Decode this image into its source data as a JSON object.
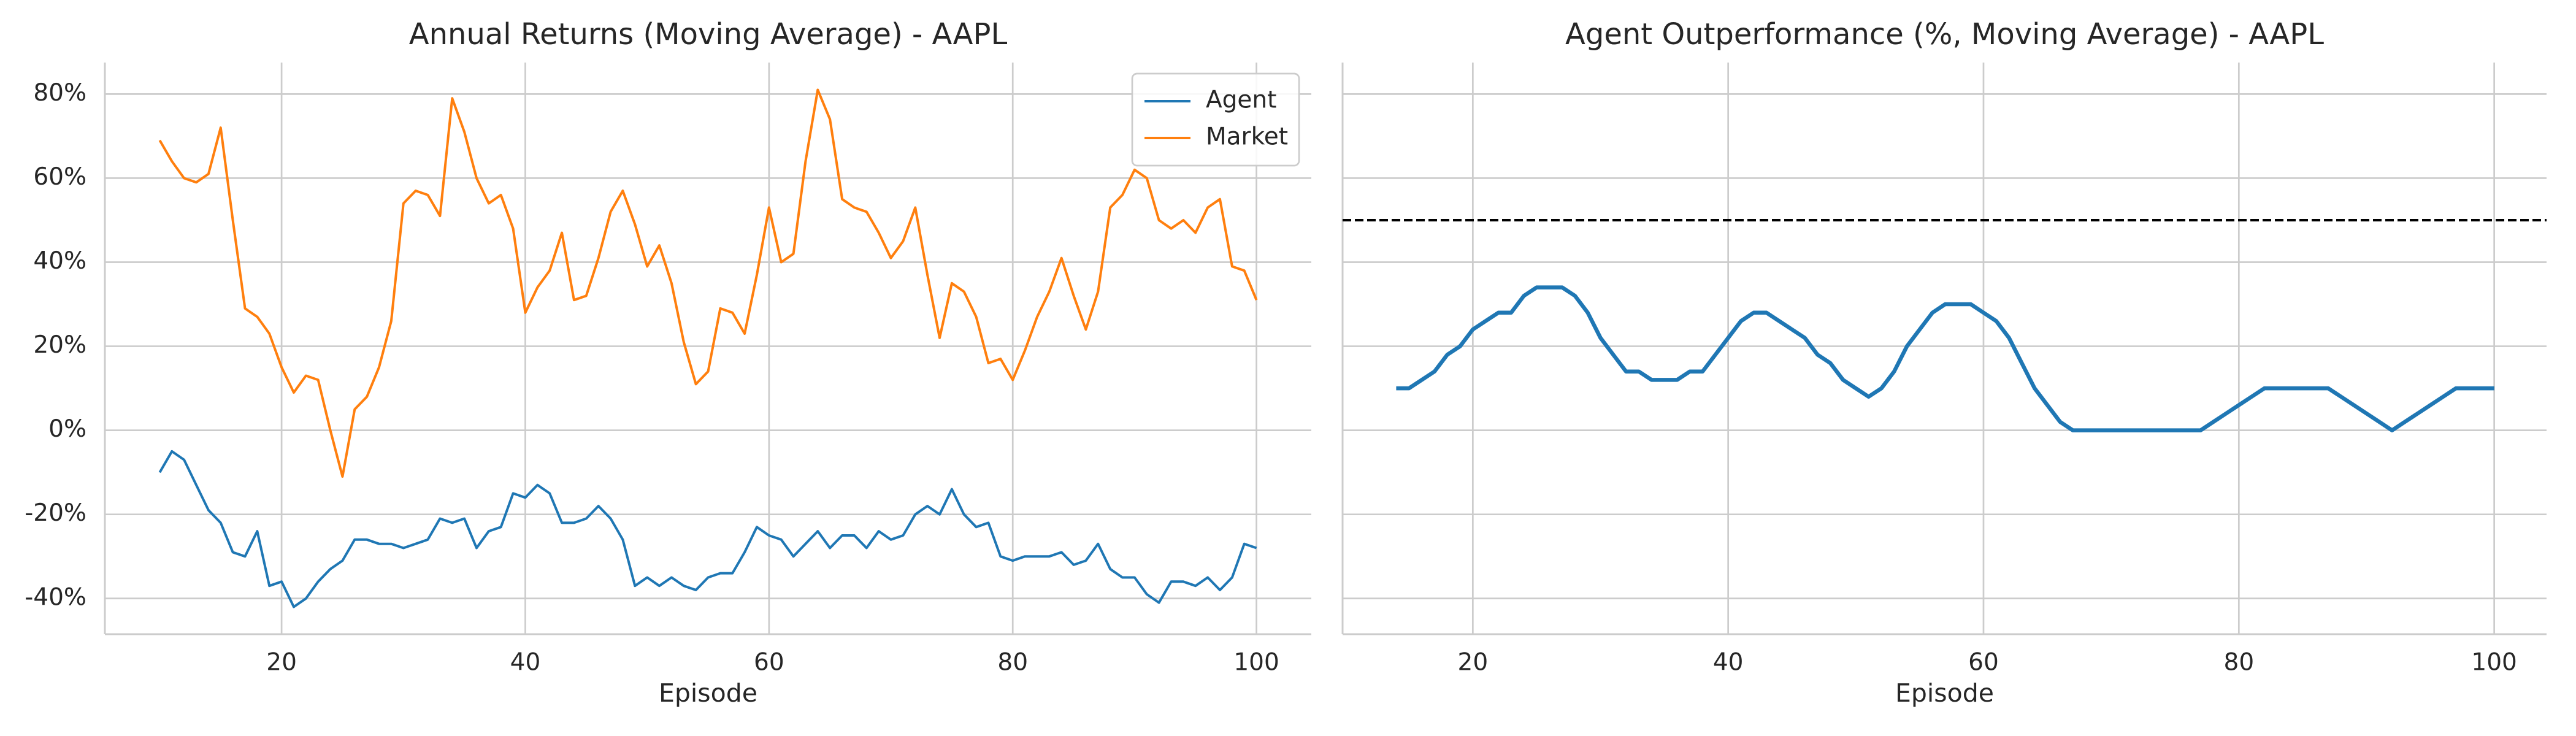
{
  "chart_data": [
    {
      "type": "line",
      "title": "Annual Returns (Moving Average) - AAPL",
      "xlabel": "Episode",
      "x": [
        10,
        11,
        12,
        13,
        14,
        15,
        16,
        17,
        18,
        19,
        20,
        21,
        22,
        23,
        24,
        25,
        26,
        27,
        28,
        29,
        30,
        31,
        32,
        33,
        34,
        35,
        36,
        37,
        38,
        39,
        40,
        41,
        42,
        43,
        44,
        45,
        46,
        47,
        48,
        49,
        50,
        51,
        52,
        53,
        54,
        55,
        56,
        57,
        58,
        59,
        60,
        61,
        62,
        63,
        64,
        65,
        66,
        67,
        68,
        69,
        70,
        71,
        72,
        73,
        74,
        75,
        76,
        77,
        78,
        79,
        80,
        81,
        82,
        83,
        84,
        85,
        86,
        87,
        88,
        89,
        90,
        91,
        92,
        93,
        94,
        95,
        96,
        97,
        98,
        99,
        100
      ],
      "series": [
        {
          "name": "Agent",
          "color": "#1f77b4",
          "values": [
            -10,
            -5,
            -7,
            -13,
            -19,
            -22,
            -29,
            -30,
            -24,
            -37,
            -36,
            -42,
            -40,
            -36,
            -33,
            -31,
            -26,
            -26,
            -27,
            -27,
            -28,
            -27,
            -26,
            -21,
            -22,
            -21,
            -28,
            -24,
            -23,
            -15,
            -16,
            -13,
            -15,
            -22,
            -22,
            -21,
            -18,
            -21,
            -26,
            -37,
            -35,
            -37,
            -35,
            -37,
            -38,
            -35,
            -34,
            -34,
            -29,
            -23,
            -25,
            -26,
            -30,
            -27,
            -24,
            -28,
            -25,
            -25,
            -28,
            -24,
            -26,
            -25,
            -20,
            -18,
            -20,
            -14,
            -20,
            -23,
            -22,
            -30,
            -31,
            -30,
            -30,
            -30,
            -29,
            -32,
            -31,
            -27,
            -33,
            -35,
            -35,
            -39,
            -41,
            -36,
            -36,
            -37,
            -35,
            -38,
            -35,
            -27,
            -28
          ]
        },
        {
          "name": "Market",
          "color": "#ff7f0e",
          "values": [
            69,
            64,
            60,
            59,
            61,
            72,
            50,
            29,
            27,
            23,
            15,
            9,
            13,
            12,
            0,
            -11,
            5,
            8,
            15,
            26,
            54,
            57,
            56,
            51,
            79,
            71,
            60,
            54,
            56,
            48,
            28,
            34,
            38,
            47,
            31,
            32,
            41,
            52,
            57,
            49,
            39,
            44,
            35,
            21,
            11,
            14,
            29,
            28,
            23,
            37,
            53,
            40,
            42,
            64,
            81,
            74,
            55,
            53,
            52,
            47,
            41,
            45,
            53,
            37,
            22,
            35,
            33,
            27,
            16,
            17,
            12,
            19,
            27,
            33,
            41,
            32,
            24,
            33,
            53,
            56,
            62,
            60,
            50,
            48,
            50,
            47,
            53,
            55,
            39,
            38,
            31
          ]
        }
      ],
      "xlim": [
        5.5,
        104.5
      ],
      "xticks": [
        20,
        40,
        60,
        80,
        100
      ],
      "ylim": [
        -48.5,
        87.5
      ],
      "yticks": [
        {
          "value": -40,
          "label": "-40%"
        },
        {
          "value": -20,
          "label": "-20%"
        },
        {
          "value": 0,
          "label": "0%"
        },
        {
          "value": 20,
          "label": "20%"
        },
        {
          "value": 40,
          "label": "40%"
        },
        {
          "value": 60,
          "label": "60%"
        },
        {
          "value": 80,
          "label": "80%"
        }
      ],
      "grid": true,
      "legend": "upper right"
    },
    {
      "type": "line",
      "title": "Agent Outperformance (%, Moving Average) - AAPL",
      "xlabel": "Episode",
      "x": [
        14,
        15,
        16,
        17,
        18,
        19,
        20,
        21,
        22,
        23,
        24,
        25,
        26,
        27,
        28,
        29,
        30,
        31,
        32,
        33,
        34,
        35,
        36,
        37,
        38,
        39,
        40,
        41,
        42,
        43,
        44,
        45,
        46,
        47,
        48,
        49,
        50,
        51,
        52,
        53,
        54,
        55,
        56,
        57,
        58,
        59,
        60,
        61,
        62,
        63,
        64,
        65,
        66,
        67,
        68,
        69,
        70,
        71,
        72,
        73,
        74,
        75,
        76,
        77,
        78,
        79,
        80,
        81,
        82,
        83,
        84,
        85,
        86,
        87,
        88,
        89,
        90,
        91,
        92,
        93,
        94,
        95,
        96,
        97,
        98,
        99,
        100
      ],
      "series": [
        {
          "color": "#1f77b4",
          "values": [
            10,
            10,
            12,
            14,
            18,
            20,
            24,
            26,
            28,
            28,
            32,
            34,
            34,
            34,
            32,
            28,
            22,
            18,
            14,
            14,
            12,
            12,
            12,
            14,
            14,
            18,
            22,
            26,
            28,
            28,
            26,
            24,
            22,
            18,
            16,
            12,
            10,
            8,
            10,
            14,
            20,
            24,
            28,
            30,
            30,
            30,
            28,
            26,
            22,
            16,
            10,
            6,
            2,
            0,
            0,
            0,
            0,
            0,
            0,
            0,
            0,
            0,
            0,
            0,
            2,
            4,
            6,
            8,
            10,
            10,
            10,
            10,
            10,
            10,
            8,
            6,
            4,
            2,
            0,
            2,
            4,
            6,
            8,
            10,
            10,
            10,
            10
          ]
        }
      ],
      "xlim": [
        9.8,
        104.1
      ],
      "xticks": [
        20,
        40,
        60,
        80,
        100
      ],
      "ylim": [
        -48.5,
        87.5
      ],
      "yticks": [
        -40,
        -20,
        0,
        20,
        40,
        60,
        80
      ],
      "grid": true,
      "hline": {
        "value": 50,
        "color": "#000000",
        "style": "dashed"
      }
    }
  ]
}
